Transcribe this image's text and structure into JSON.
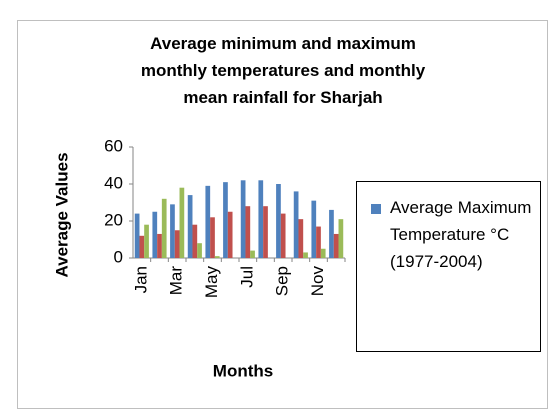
{
  "chart_data": {
    "type": "bar",
    "title": "Average minimum and maximum monthly temperatures and monthly mean rainfall for Sharjah",
    "x_label": "Months",
    "y_label": "Average Values",
    "categories": [
      "Jan",
      null,
      "Mar",
      null,
      "May",
      null,
      "Jul",
      null,
      "Sep",
      null,
      "Nov",
      null
    ],
    "series": [
      {
        "name": "Average Maximum Temperature °C  (1977-2004)",
        "color": "#4f81bd",
        "values": [
          24,
          25,
          29,
          34,
          39,
          41,
          42,
          42,
          40,
          36,
          31,
          26
        ]
      },
      {
        "color": "#c0504d",
        "values": [
          12,
          13,
          15,
          18,
          22,
          25,
          28,
          28,
          24,
          21,
          17,
          13
        ]
      },
      {
        "color": "#9bbb59",
        "values": [
          18,
          32,
          38,
          8,
          1,
          0,
          4,
          0,
          0,
          3,
          5,
          21
        ]
      }
    ],
    "ylim": [
      0,
      60
    ],
    "yticks": [
      0,
      20,
      40,
      60
    ],
    "grid": false,
    "legend": "right"
  }
}
